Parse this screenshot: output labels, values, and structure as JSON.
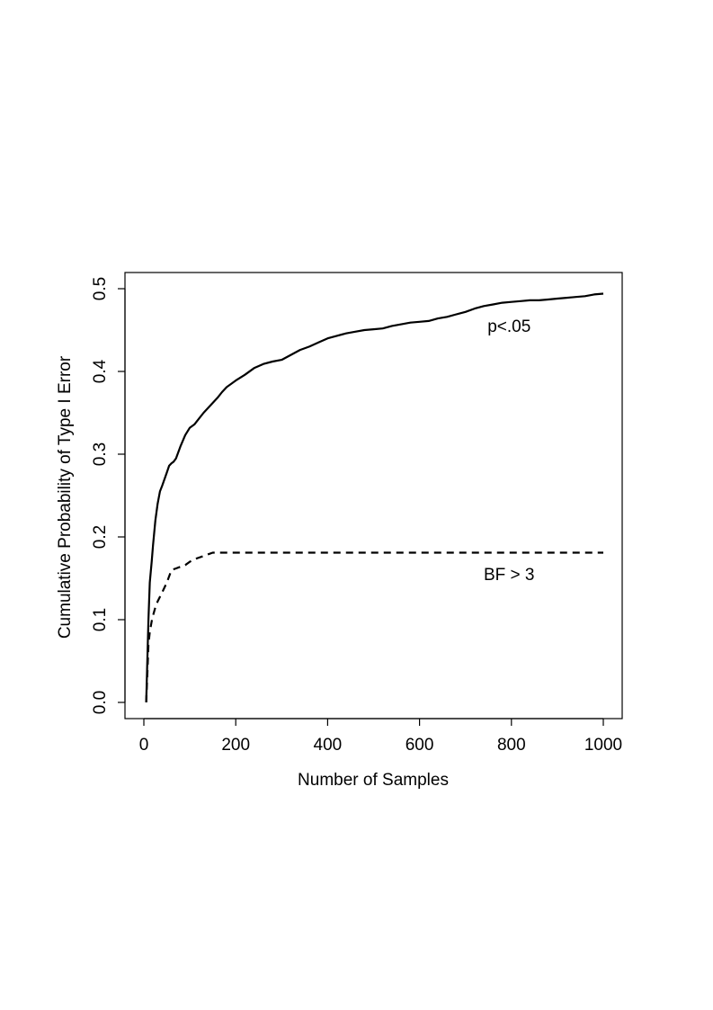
{
  "chart_data": {
    "type": "line",
    "title": "",
    "xlabel": "Number of Samples",
    "ylabel": "Cumulative Probability of Type I Error",
    "xlim": [
      0,
      1000
    ],
    "ylim": [
      0.0,
      0.5
    ],
    "x_ticks": [
      "0",
      "200",
      "400",
      "600",
      "800",
      "1000"
    ],
    "y_ticks": [
      "0.0",
      "0.1",
      "0.2",
      "0.3",
      "0.4",
      "0.5"
    ],
    "grid": false,
    "series": [
      {
        "name": "p<.05",
        "line_style": "solid",
        "color": "#000000",
        "x": [
          5,
          8,
          10,
          13,
          17,
          20,
          25,
          30,
          35,
          40,
          45,
          50,
          55,
          60,
          65,
          70,
          80,
          90,
          100,
          110,
          120,
          130,
          140,
          150,
          160,
          170,
          180,
          200,
          220,
          240,
          260,
          280,
          300,
          320,
          340,
          360,
          380,
          400,
          420,
          440,
          460,
          480,
          500,
          520,
          540,
          560,
          580,
          600,
          620,
          640,
          660,
          680,
          700,
          720,
          740,
          760,
          780,
          800,
          820,
          840,
          860,
          880,
          900,
          920,
          940,
          960,
          980,
          1000
        ],
        "y": [
          0.0,
          0.06,
          0.1,
          0.145,
          0.17,
          0.19,
          0.22,
          0.24,
          0.255,
          0.262,
          0.27,
          0.278,
          0.286,
          0.289,
          0.291,
          0.295,
          0.31,
          0.323,
          0.332,
          0.336,
          0.343,
          0.35,
          0.356,
          0.362,
          0.368,
          0.375,
          0.381,
          0.389,
          0.396,
          0.404,
          0.409,
          0.412,
          0.414,
          0.42,
          0.426,
          0.43,
          0.435,
          0.44,
          0.443,
          0.446,
          0.448,
          0.45,
          0.451,
          0.452,
          0.455,
          0.457,
          0.459,
          0.46,
          0.461,
          0.464,
          0.466,
          0.469,
          0.472,
          0.476,
          0.479,
          0.481,
          0.483,
          0.484,
          0.485,
          0.486,
          0.486,
          0.487,
          0.488,
          0.489,
          0.49,
          0.491,
          0.493,
          0.494
        ]
      },
      {
        "name": "BF > 3",
        "line_style": "dashed",
        "color": "#000000",
        "x": [
          5,
          8,
          10,
          13,
          17,
          20,
          25,
          30,
          40,
          50,
          60,
          70,
          80,
          90,
          100,
          110,
          120,
          130,
          140,
          150,
          175,
          200,
          300,
          400,
          500,
          600,
          700,
          800,
          900,
          1000
        ],
        "y": [
          0.0,
          0.04,
          0.07,
          0.085,
          0.098,
          0.105,
          0.115,
          0.122,
          0.133,
          0.145,
          0.16,
          0.162,
          0.164,
          0.166,
          0.17,
          0.173,
          0.175,
          0.177,
          0.179,
          0.181,
          0.181,
          0.181,
          0.181,
          0.181,
          0.181,
          0.181,
          0.181,
          0.181,
          0.181,
          0.181
        ]
      }
    ],
    "annotations": [
      {
        "text": "p<.05",
        "x": 795,
        "y": 0.448
      },
      {
        "text": "BF > 3",
        "x": 795,
        "y": 0.148
      }
    ]
  }
}
